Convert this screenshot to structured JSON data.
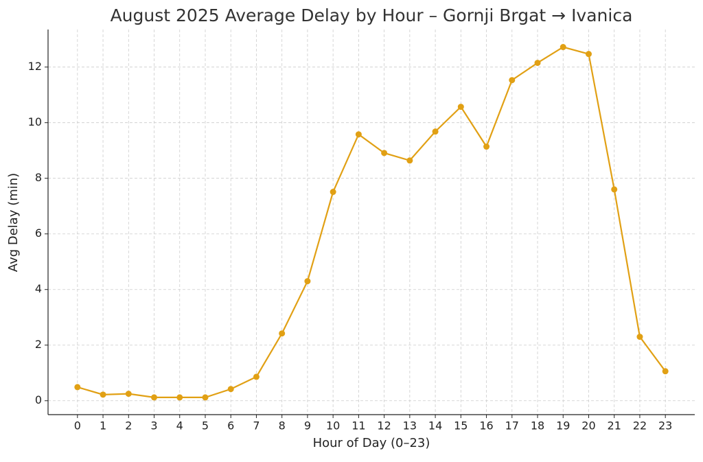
{
  "chart_data": {
    "type": "line",
    "title": "August 2025 Average Delay by Hour – Gornji Brgat → Ivanica",
    "x_label": "Hour of Day (0–23)",
    "y_label": "Avg Delay (min)",
    "x": [
      0,
      1,
      2,
      3,
      4,
      5,
      6,
      7,
      8,
      9,
      10,
      11,
      12,
      13,
      14,
      15,
      16,
      17,
      18,
      19,
      20,
      21,
      22,
      23
    ],
    "series": [
      {
        "name": "Avg Delay",
        "color": "#e1a014",
        "values": [
          0.49,
          0.22,
          0.25,
          0.12,
          0.12,
          0.12,
          0.42,
          0.86,
          2.42,
          4.3,
          7.51,
          9.58,
          8.91,
          8.64,
          9.68,
          10.57,
          9.14,
          11.53,
          12.15,
          12.72,
          12.47,
          7.6,
          2.3,
          1.06
        ]
      }
    ],
    "xlim": [
      -1.15,
      24.15
    ],
    "xticks": [
      0,
      1,
      2,
      3,
      4,
      5,
      6,
      7,
      8,
      9,
      10,
      11,
      12,
      13,
      14,
      15,
      16,
      17,
      18,
      19,
      20,
      21,
      22,
      23
    ],
    "ylim": [
      -0.5,
      13.35
    ],
    "yticks": [
      0,
      2,
      4,
      6,
      8,
      10,
      12
    ],
    "grid": true
  }
}
